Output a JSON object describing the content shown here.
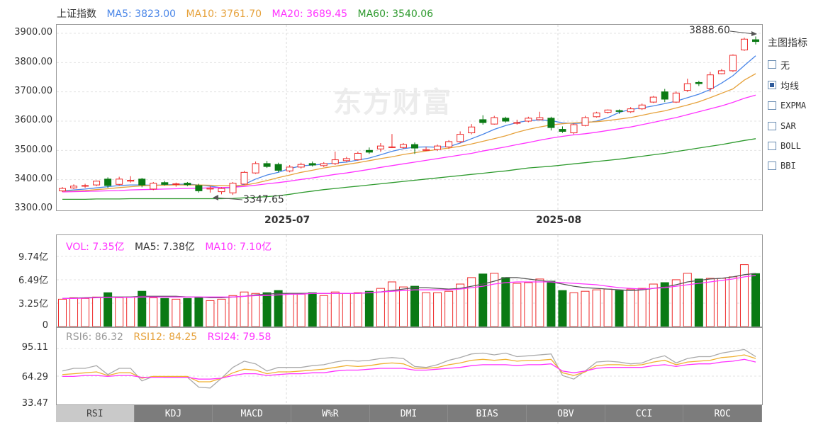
{
  "price_legend": {
    "name": "上证指数",
    "ma5": "MA5: 3823.00",
    "ma10": "MA10: 3761.70",
    "ma20": "MA20: 3689.45",
    "ma60": "MA60: 3540.06",
    "colors": {
      "name": "#333333",
      "ma5": "#4a86e8",
      "ma10": "#e6a23c",
      "ma20": "#ff33ff",
      "ma60": "#2e9a2e"
    }
  },
  "price_axis": [
    "3900.00",
    "3800.00",
    "3700.00",
    "3600.00",
    "3500.00",
    "3400.00",
    "3300.00"
  ],
  "x_labels": [
    "2025-07",
    "2025-08"
  ],
  "annotations": {
    "high": "3888.60",
    "low": "3347.65"
  },
  "watermark": "东方财富",
  "side_panel": {
    "title": "主图指标",
    "options": [
      {
        "label": "无",
        "checked": false
      },
      {
        "label": "均线",
        "checked": true
      },
      {
        "label": "EXPMA",
        "checked": false
      },
      {
        "label": "SAR",
        "checked": false
      },
      {
        "label": "BOLL",
        "checked": false
      },
      {
        "label": "BBI",
        "checked": false
      }
    ]
  },
  "vol_legend": {
    "vol": "VOL: 7.35亿",
    "ma5": "MA5: 7.38亿",
    "ma10": "MA10: 7.10亿"
  },
  "vol_axis": [
    "9.74亿",
    "6.49亿",
    "3.25亿",
    "0"
  ],
  "rsi_legend": {
    "rsi6": "RSI6: 86.32",
    "rsi12": "RSI12: 84.25",
    "rsi24": "RSI24: 79.58"
  },
  "rsi_axis": [
    "95.11",
    "64.29",
    "33.47"
  ],
  "tabs": [
    {
      "label": "RSI",
      "active": true
    },
    {
      "label": "KDJ",
      "active": false
    },
    {
      "label": "MACD",
      "active": false
    },
    {
      "label": "W%R",
      "active": false
    },
    {
      "label": "DMI",
      "active": false
    },
    {
      "label": "BIAS",
      "active": false
    },
    {
      "label": "OBV",
      "active": false
    },
    {
      "label": "CCI",
      "active": false
    },
    {
      "label": "ROC",
      "active": false
    }
  ],
  "chart_data": [
    {
      "type": "candlestick",
      "title": "上证指数",
      "ylim": [
        3300,
        3900
      ],
      "ohlc": [
        [
          3362,
          3375,
          3358,
          3370
        ],
        [
          3372,
          3384,
          3368,
          3378
        ],
        [
          3378,
          3386,
          3372,
          3380
        ],
        [
          3382,
          3397,
          3378,
          3395
        ],
        [
          3402,
          3408,
          3372,
          3380
        ],
        [
          3384,
          3410,
          3380,
          3402
        ],
        [
          3395,
          3412,
          3390,
          3398
        ],
        [
          3402,
          3406,
          3374,
          3382
        ],
        [
          3368,
          3392,
          3364,
          3388
        ],
        [
          3390,
          3396,
          3380,
          3384
        ],
        [
          3384,
          3390,
          3376,
          3386
        ],
        [
          3388,
          3392,
          3378,
          3383
        ],
        [
          3380,
          3386,
          3356,
          3362
        ],
        [
          3368,
          3378,
          3356,
          3371
        ],
        [
          3359,
          3374,
          3350,
          3370
        ],
        [
          3355,
          3392,
          3348,
          3388
        ],
        [
          3385,
          3430,
          3383,
          3425
        ],
        [
          3423,
          3462,
          3420,
          3455
        ],
        [
          3455,
          3464,
          3440,
          3445
        ],
        [
          3452,
          3458,
          3425,
          3432
        ],
        [
          3430,
          3450,
          3425,
          3443
        ],
        [
          3443,
          3458,
          3438,
          3452
        ],
        [
          3455,
          3462,
          3445,
          3450
        ],
        [
          3448,
          3460,
          3443,
          3455
        ],
        [
          3455,
          3496,
          3450,
          3468
        ],
        [
          3465,
          3478,
          3460,
          3472
        ],
        [
          3468,
          3496,
          3465,
          3490
        ],
        [
          3500,
          3510,
          3488,
          3494
        ],
        [
          3505,
          3525,
          3495,
          3515
        ],
        [
          3512,
          3556,
          3508,
          3512
        ],
        [
          3510,
          3525,
          3505,
          3520
        ],
        [
          3520,
          3527,
          3488,
          3508
        ],
        [
          3500,
          3512,
          3498,
          3503
        ],
        [
          3503,
          3520,
          3498,
          3515
        ],
        [
          3512,
          3535,
          3505,
          3530
        ],
        [
          3530,
          3565,
          3525,
          3555
        ],
        [
          3560,
          3590,
          3555,
          3580
        ],
        [
          3605,
          3620,
          3588,
          3595
        ],
        [
          3590,
          3618,
          3588,
          3612
        ],
        [
          3610,
          3615,
          3595,
          3600
        ],
        [
          3593,
          3605,
          3588,
          3595
        ],
        [
          3600,
          3615,
          3596,
          3610
        ],
        [
          3605,
          3632,
          3602,
          3612
        ],
        [
          3610,
          3615,
          3568,
          3578
        ],
        [
          3572,
          3582,
          3560,
          3565
        ],
        [
          3560,
          3592,
          3555,
          3588
        ],
        [
          3585,
          3618,
          3582,
          3612
        ],
        [
          3615,
          3632,
          3612,
          3628
        ],
        [
          3630,
          3640,
          3626,
          3638
        ],
        [
          3636,
          3640,
          3625,
          3633
        ],
        [
          3632,
          3648,
          3628,
          3642
        ],
        [
          3642,
          3660,
          3638,
          3655
        ],
        [
          3665,
          3686,
          3662,
          3682
        ],
        [
          3700,
          3710,
          3665,
          3675
        ],
        [
          3665,
          3702,
          3662,
          3696
        ],
        [
          3705,
          3745,
          3700,
          3728
        ],
        [
          3732,
          3738,
          3720,
          3728
        ],
        [
          3712,
          3768,
          3700,
          3758
        ],
        [
          3762,
          3778,
          3760,
          3772
        ],
        [
          3772,
          3828,
          3768,
          3825
        ],
        [
          3843,
          3885,
          3840,
          3880
        ],
        [
          3878,
          3889,
          3862,
          3872
        ]
      ],
      "ma_lines": {
        "MA5": [
          3362,
          3365,
          3368,
          3372,
          3376,
          3380,
          3382,
          3382,
          3381,
          3382,
          3384,
          3385,
          3382,
          3378,
          3372,
          3372,
          3384,
          3402,
          3416,
          3425,
          3438,
          3447,
          3450,
          3453,
          3457,
          3460,
          3467,
          3474,
          3485,
          3497,
          3506,
          3511,
          3512,
          3511,
          3513,
          3525,
          3540,
          3555,
          3572,
          3585,
          3595,
          3602,
          3604,
          3602,
          3594,
          3592,
          3594,
          3600,
          3612,
          3630,
          3640,
          3645,
          3652,
          3660,
          3668,
          3680,
          3692,
          3708,
          3730,
          3755,
          3790,
          3823
        ],
        "MA10": [
          3360,
          3361,
          3363,
          3366,
          3369,
          3373,
          3376,
          3379,
          3381,
          3381,
          3382,
          3382,
          3382,
          3381,
          3380,
          3379,
          3381,
          3388,
          3397,
          3407,
          3416,
          3425,
          3432,
          3440,
          3446,
          3452,
          3458,
          3465,
          3472,
          3478,
          3486,
          3492,
          3498,
          3503,
          3508,
          3514,
          3522,
          3531,
          3540,
          3550,
          3562,
          3572,
          3580,
          3587,
          3591,
          3594,
          3596,
          3598,
          3602,
          3607,
          3612,
          3620,
          3628,
          3635,
          3645,
          3655,
          3666,
          3680,
          3695,
          3710,
          3740,
          3762
        ],
        "MA20": [
          3358,
          3359,
          3360,
          3361,
          3362,
          3363,
          3365,
          3366,
          3367,
          3368,
          3369,
          3370,
          3371,
          3372,
          3373,
          3374,
          3377,
          3381,
          3386,
          3390,
          3395,
          3401,
          3406,
          3412,
          3418,
          3423,
          3429,
          3435,
          3442,
          3448,
          3454,
          3460,
          3466,
          3472,
          3478,
          3484,
          3490,
          3498,
          3505,
          3512,
          3520,
          3527,
          3535,
          3542,
          3548,
          3553,
          3557,
          3562,
          3568,
          3574,
          3580,
          3588,
          3596,
          3604,
          3612,
          3622,
          3632,
          3642,
          3652,
          3664,
          3678,
          3689
        ],
        "MA60": [
          3333,
          3333,
          3333,
          3334,
          3334,
          3334,
          3335,
          3335,
          3335,
          3335,
          3335,
          3335,
          3335,
          3335,
          3335,
          3336,
          3338,
          3340,
          3342,
          3345,
          3350,
          3356,
          3361,
          3366,
          3370,
          3374,
          3378,
          3382,
          3386,
          3390,
          3394,
          3398,
          3402,
          3406,
          3410,
          3414,
          3418,
          3422,
          3426,
          3430,
          3435,
          3440,
          3443,
          3446,
          3450,
          3454,
          3458,
          3462,
          3466,
          3470,
          3475,
          3480,
          3485,
          3490,
          3496,
          3502,
          3508,
          3514,
          3520,
          3527,
          3534,
          3540
        ]
      },
      "x_tick_labels": [
        "2025-07",
        "2025-08"
      ],
      "legend": [
        "MA5",
        "MA10",
        "MA20",
        "MA60"
      ]
    },
    {
      "type": "bar",
      "title": "VOL",
      "unit": "亿",
      "ylim": [
        0,
        9.74
      ],
      "values": [
        3.8,
        4.0,
        3.9,
        4.1,
        4.7,
        4.0,
        4.1,
        4.9,
        4.0,
        3.9,
        3.8,
        3.9,
        4.0,
        3.6,
        3.8,
        4.3,
        4.8,
        4.6,
        4.7,
        5.0,
        4.6,
        4.5,
        4.7,
        4.3,
        4.8,
        4.6,
        4.7,
        4.9,
        5.3,
        6.2,
        5.5,
        5.6,
        4.7,
        4.7,
        4.9,
        5.9,
        6.8,
        7.3,
        7.4,
        6.8,
        6.0,
        6.1,
        6.6,
        6.3,
        5.0,
        4.7,
        4.9,
        5.1,
        5.2,
        5.0,
        5.2,
        5.3,
        5.9,
        6.1,
        6.5,
        7.4,
        6.6,
        6.7,
        6.7,
        6.9,
        8.6,
        7.35
      ],
      "ma_lines": {
        "MA5": [
          3.9,
          3.95,
          4.0,
          4.05,
          4.1,
          4.1,
          4.1,
          4.2,
          4.2,
          4.2,
          4.2,
          4.1,
          4.1,
          4.0,
          4.0,
          4.1,
          4.2,
          4.4,
          4.5,
          4.6,
          4.6,
          4.6,
          4.6,
          4.6,
          4.6,
          4.6,
          4.6,
          4.7,
          4.8,
          5.0,
          5.2,
          5.4,
          5.4,
          5.3,
          5.2,
          5.3,
          5.6,
          5.9,
          6.3,
          6.8,
          6.8,
          6.6,
          6.4,
          6.2,
          5.9,
          5.6,
          5.4,
          5.3,
          5.2,
          5.1,
          5.0,
          5.1,
          5.3,
          5.5,
          5.8,
          6.2,
          6.4,
          6.6,
          6.7,
          6.9,
          7.2,
          7.38
        ],
        "MA10": [
          3.9,
          3.9,
          3.95,
          4.0,
          4.05,
          4.05,
          4.05,
          4.1,
          4.1,
          4.1,
          4.1,
          4.1,
          4.1,
          4.1,
          4.1,
          4.1,
          4.2,
          4.3,
          4.3,
          4.4,
          4.5,
          4.5,
          4.6,
          4.6,
          4.6,
          4.6,
          4.6,
          4.7,
          4.8,
          4.9,
          5.0,
          5.1,
          5.1,
          5.1,
          5.1,
          5.2,
          5.4,
          5.6,
          5.9,
          6.1,
          6.2,
          6.2,
          6.2,
          6.2,
          6.1,
          6.0,
          5.9,
          5.8,
          5.6,
          5.4,
          5.3,
          5.2,
          5.3,
          5.4,
          5.6,
          5.8,
          6.0,
          6.2,
          6.4,
          6.6,
          6.9,
          7.1
        ]
      },
      "legend": [
        "VOL: 7.35亿",
        "MA5: 7.38亿",
        "MA10: 7.10亿"
      ]
    },
    {
      "type": "line",
      "title": "RSI",
      "ylim": [
        33.47,
        95.11
      ],
      "series": [
        {
          "name": "RSI6",
          "values": [
            70,
            73,
            73,
            76,
            66,
            73,
            73,
            59,
            64,
            63,
            63,
            63,
            52,
            51,
            62,
            74,
            81,
            78,
            70,
            74,
            74,
            74,
            76,
            77,
            80,
            82,
            81,
            82,
            84,
            85,
            84,
            75,
            74,
            77,
            82,
            85,
            89,
            90,
            88,
            90,
            86,
            87,
            88,
            89,
            65,
            61,
            70,
            80,
            81,
            80,
            78,
            79,
            84,
            87,
            79,
            84,
            86,
            86,
            90,
            92,
            94,
            86
          ]
        },
        {
          "name": "RSI12",
          "values": [
            66,
            67,
            68,
            69,
            65,
            68,
            68,
            62,
            64,
            64,
            64,
            64,
            58,
            58,
            62,
            68,
            72,
            71,
            67,
            69,
            69,
            70,
            71,
            72,
            74,
            76,
            75,
            76,
            78,
            79,
            78,
            73,
            73,
            74,
            77,
            79,
            82,
            83,
            82,
            83,
            81,
            82,
            82,
            83,
            68,
            65,
            69,
            76,
            77,
            77,
            76,
            77,
            80,
            82,
            77,
            80,
            81,
            82,
            85,
            86,
            88,
            84
          ]
        },
        {
          "name": "RSI24",
          "values": [
            64,
            64,
            65,
            65,
            64,
            65,
            65,
            63,
            63,
            63,
            63,
            63,
            61,
            61,
            62,
            65,
            67,
            67,
            65,
            66,
            67,
            67,
            68,
            68,
            70,
            71,
            71,
            72,
            73,
            73,
            73,
            71,
            71,
            72,
            73,
            74,
            76,
            77,
            77,
            77,
            76,
            77,
            77,
            78,
            70,
            68,
            70,
            73,
            74,
            74,
            74,
            74,
            76,
            77,
            75,
            77,
            78,
            78,
            80,
            81,
            83,
            80
          ]
        }
      ],
      "legend": [
        "RSI6: 86.32",
        "RSI12: 84.25",
        "RSI24: 79.58"
      ]
    }
  ]
}
